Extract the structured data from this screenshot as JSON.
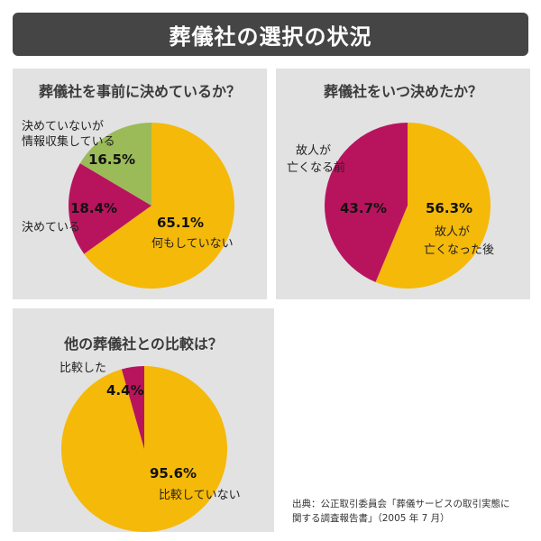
{
  "title": "葬儀社の選択の状況",
  "colors": {
    "yellow": "#f5b90a",
    "magenta": "#b8145e",
    "green": "#9bbb59",
    "panel": "#e2e2e2",
    "header": "#454545"
  },
  "chart_data": [
    {
      "type": "pie",
      "title": "葬儀社を事前に決めているか？",
      "slices": [
        {
          "label": "何もしていない",
          "value": 65.1,
          "value_label": "65.1%",
          "color": "#f5b90a"
        },
        {
          "label": "決めている",
          "value": 18.4,
          "value_label": "18.4%",
          "color": "#b8145e"
        },
        {
          "label_lines": [
            "決めていないが",
            "情報収集している"
          ],
          "value": 16.5,
          "value_label": "16.5%",
          "color": "#9bbb59"
        }
      ]
    },
    {
      "type": "pie",
      "title": "葬儀社をいつ決めたか？",
      "slices": [
        {
          "label_lines": [
            "故人が",
            "亡くなった後"
          ],
          "value": 56.3,
          "value_label": "56.3%",
          "color": "#f5b90a"
        },
        {
          "label_lines": [
            "故人が",
            "亡くなる前"
          ],
          "value": 43.7,
          "value_label": "43.7%",
          "color": "#b8145e"
        }
      ]
    },
    {
      "type": "pie",
      "title": "他の葬儀社との比較は？",
      "slices": [
        {
          "label": "比較していない",
          "value": 95.6,
          "value_label": "95.6%",
          "color": "#f5b90a"
        },
        {
          "label": "比較した",
          "value": 4.4,
          "value_label": "4.4%",
          "color": "#b8145e"
        }
      ]
    }
  ],
  "source": {
    "line1": "出典：公正取引委員会「葬儀サービスの取引実態に",
    "line2": "関する調査報告書」（2005 年 7 月）"
  }
}
